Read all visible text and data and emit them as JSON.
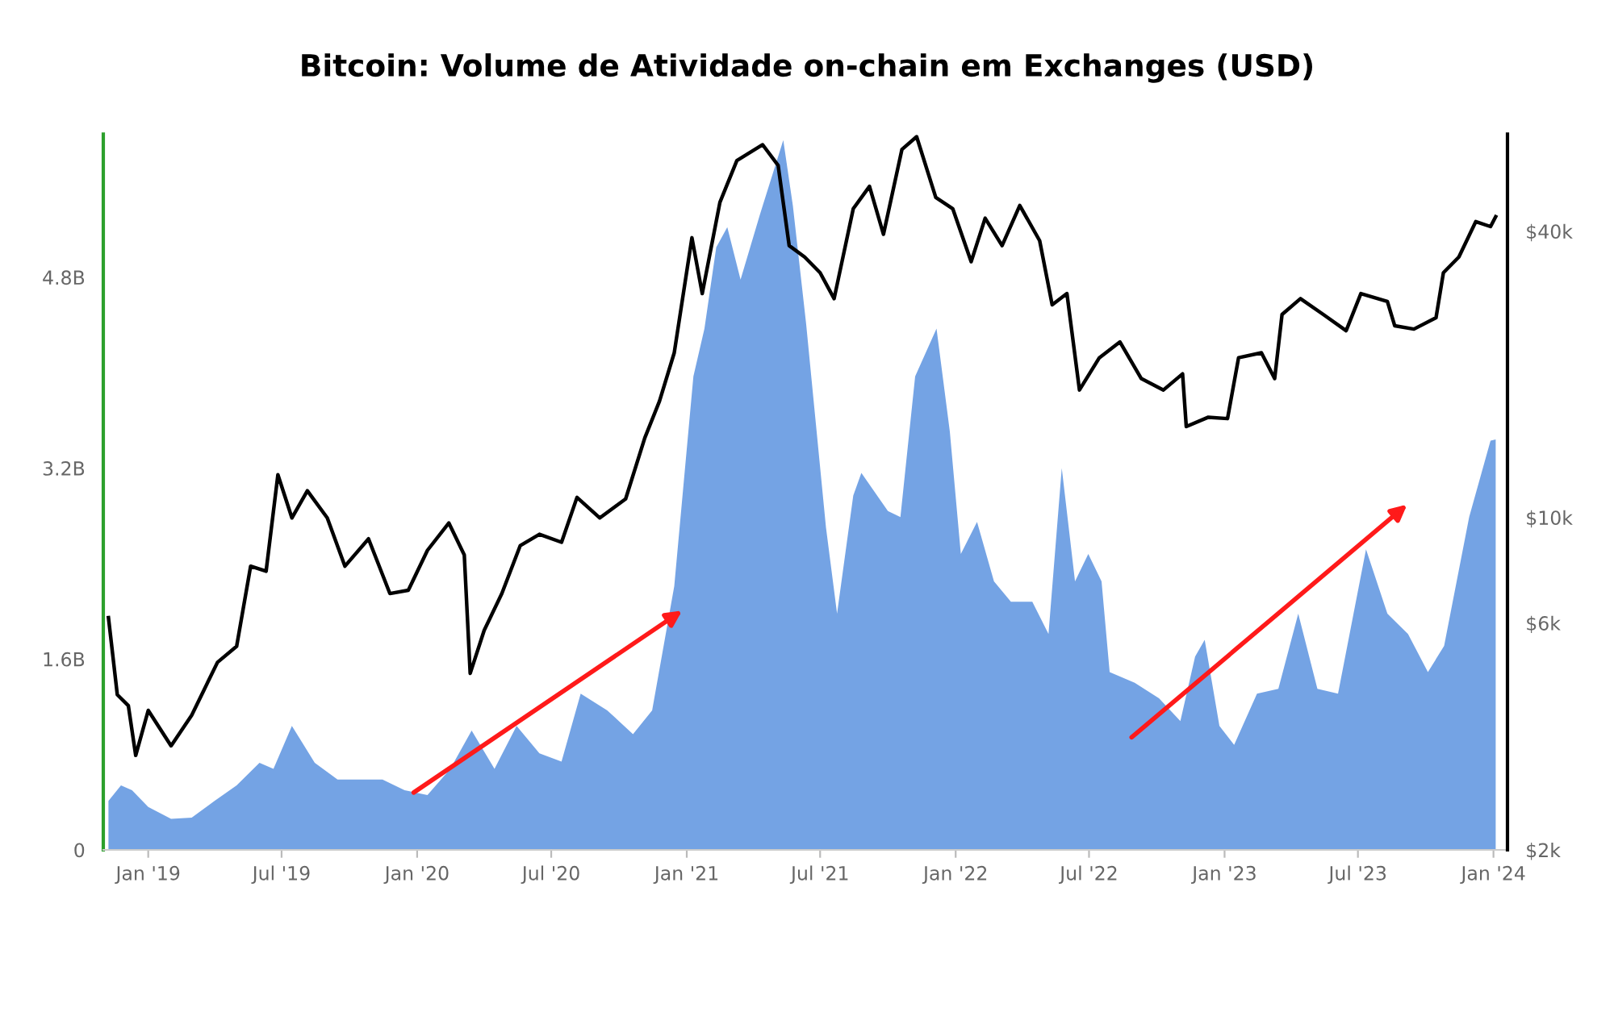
{
  "chart_data": {
    "type": "area",
    "title": "Bitcoin: Volume de Atividade on-chain em Exchanges (USD)",
    "xlim": [
      "2018-11-01",
      "2024-01-20"
    ],
    "xticks": [
      {
        "value": "2019-01-01",
        "label": "Jan '19"
      },
      {
        "value": "2019-07-01",
        "label": "Jul '19"
      },
      {
        "value": "2020-01-01",
        "label": "Jan '20"
      },
      {
        "value": "2020-07-01",
        "label": "Jul '20"
      },
      {
        "value": "2021-01-01",
        "label": "Jan '21"
      },
      {
        "value": "2021-07-01",
        "label": "Jul '21"
      },
      {
        "value": "2022-01-01",
        "label": "Jan '22"
      },
      {
        "value": "2022-07-01",
        "label": "Jul '22"
      },
      {
        "value": "2023-01-01",
        "label": "Jan '23"
      },
      {
        "value": "2023-07-01",
        "label": "Jul '23"
      },
      {
        "value": "2024-01-01",
        "label": "Jan '24"
      }
    ],
    "ylim": [
      0,
      6.0
    ],
    "yticks": [
      0,
      {
        "value": 1.6,
        "label": "1.6B"
      },
      {
        "value": 3.2,
        "label": "3.2B"
      },
      {
        "value": 4.8,
        "label": "4.8B"
      }
    ],
    "y2lim": [
      2000,
      64000
    ],
    "y2ticks": [
      {
        "value": 2000,
        "label": "$2k"
      },
      {
        "value": 6000,
        "label": "$6k"
      },
      {
        "value": 10000,
        "label": "$10k"
      },
      {
        "value": 40000,
        "label": "$40k"
      }
    ],
    "log": "y2",
    "series": [
      {
        "color": "#6d9ee3",
        "x": [
          "2018-11-08",
          "2018-11-25",
          "2018-12-10",
          "2019-01-01",
          "2019-02-01",
          "2019-03-01",
          "2019-04-01",
          "2019-05-01",
          "2019-06-01",
          "2019-06-20",
          "2019-07-15",
          "2019-08-15",
          "2019-09-15",
          "2019-10-15",
          "2019-11-15",
          "2019-12-15",
          "2020-01-15",
          "2020-02-15",
          "2020-03-15",
          "2020-04-15",
          "2020-05-15",
          "2020-06-15",
          "2020-07-15",
          "2020-08-10",
          "2020-09-15",
          "2020-10-20",
          "2020-11-15",
          "2020-12-15",
          "2021-01-10",
          "2021-01-25",
          "2021-02-10",
          "2021-02-25",
          "2021-03-15",
          "2021-04-10",
          "2021-05-12",
          "2021-05-25",
          "2021-06-12",
          "2021-07-09",
          "2021-07-24",
          "2021-08-15",
          "2021-08-26",
          "2021-10-01",
          "2021-10-18",
          "2021-11-07",
          "2021-12-06",
          "2021-12-24",
          "2022-01-08",
          "2022-01-30",
          "2022-02-22",
          "2022-03-17",
          "2022-04-15",
          "2022-05-07",
          "2022-05-25",
          "2022-06-12",
          "2022-06-30",
          "2022-07-18",
          "2022-07-29",
          "2022-09-01",
          "2022-10-04",
          "2022-11-02",
          "2022-11-22",
          "2022-12-05",
          "2022-12-25",
          "2023-01-14",
          "2023-02-14",
          "2023-03-15",
          "2023-04-11",
          "2023-05-07",
          "2023-06-04",
          "2023-07-12",
          "2023-08-10",
          "2023-09-07",
          "2023-10-04",
          "2023-10-26",
          "2023-11-29",
          "2023-12-28",
          "2024-01-04"
        ],
        "values": [
          0.41,
          0.54,
          0.5,
          0.36,
          0.26,
          0.27,
          0.41,
          0.54,
          0.73,
          0.68,
          1.04,
          0.73,
          0.59,
          0.59,
          0.59,
          0.5,
          0.46,
          0.68,
          1.0,
          0.68,
          1.04,
          0.81,
          0.74,
          1.31,
          1.17,
          0.97,
          1.17,
          2.21,
          3.97,
          4.37,
          5.05,
          5.22,
          4.78,
          5.32,
          5.95,
          5.4,
          4.41,
          2.7,
          1.98,
          2.97,
          3.16,
          2.84,
          2.79,
          3.97,
          4.37,
          3.51,
          2.48,
          2.75,
          2.25,
          2.08,
          2.08,
          1.81,
          3.2,
          2.25,
          2.48,
          2.25,
          1.49,
          1.4,
          1.27,
          1.08,
          1.62,
          1.76,
          1.04,
          0.88,
          1.31,
          1.35,
          1.98,
          1.35,
          1.31,
          2.52,
          1.98,
          1.81,
          1.49,
          1.71,
          2.79,
          3.43,
          3.44
        ]
      },
      {
        "type": "line",
        "axis": "y2",
        "color": "#000000",
        "x": [
          "2018-11-08",
          "2018-11-20",
          "2018-12-05",
          "2018-12-15",
          "2019-01-01",
          "2019-02-01",
          "2019-03-01",
          "2019-04-05",
          "2019-05-01",
          "2019-05-20",
          "2019-06-10",
          "2019-06-26",
          "2019-07-15",
          "2019-08-05",
          "2019-09-01",
          "2019-09-25",
          "2019-10-27",
          "2019-11-25",
          "2019-12-20",
          "2020-01-15",
          "2020-02-13",
          "2020-03-05",
          "2020-03-13",
          "2020-04-01",
          "2020-04-25",
          "2020-05-20",
          "2020-06-15",
          "2020-07-15",
          "2020-08-05",
          "2020-09-05",
          "2020-10-10",
          "2020-11-05",
          "2020-11-25",
          "2020-12-15",
          "2021-01-08",
          "2021-01-22",
          "2021-02-15",
          "2021-03-10",
          "2021-04-14",
          "2021-05-05",
          "2021-05-20",
          "2021-06-10",
          "2021-07-01",
          "2021-07-20",
          "2021-08-15",
          "2021-09-06",
          "2021-09-25",
          "2021-10-20",
          "2021-11-09",
          "2021-12-05",
          "2021-12-28",
          "2022-01-22",
          "2022-02-10",
          "2022-03-05",
          "2022-03-29",
          "2022-04-25",
          "2022-05-12",
          "2022-06-01",
          "2022-06-18",
          "2022-07-15",
          "2022-08-12",
          "2022-09-10",
          "2022-10-10",
          "2022-11-05",
          "2022-11-10",
          "2022-12-10",
          "2023-01-05",
          "2023-01-20",
          "2023-02-20",
          "2023-03-10",
          "2023-03-20",
          "2023-04-14",
          "2023-05-15",
          "2023-06-15",
          "2023-07-05",
          "2023-08-10",
          "2023-08-20",
          "2023-09-15",
          "2023-10-15",
          "2023-10-25",
          "2023-11-15",
          "2023-12-08",
          "2023-12-28",
          "2024-01-04"
        ],
        "values": [
          6160,
          4240,
          4020,
          3160,
          3930,
          3310,
          3840,
          4960,
          5360,
          7900,
          7710,
          12300,
          9980,
          11380,
          9980,
          7900,
          9020,
          6920,
          7030,
          8530,
          9740,
          8340,
          4700,
          5790,
          6920,
          8730,
          9220,
          8870,
          11020,
          9980,
          10940,
          14700,
          17570,
          22200,
          38750,
          29570,
          46000,
          56300,
          60800,
          55000,
          37300,
          35300,
          32700,
          28850,
          44600,
          49700,
          39400,
          59400,
          63200,
          47100,
          44600,
          34500,
          42600,
          37300,
          45300,
          38200,
          28000,
          29570,
          18540,
          21670,
          23400,
          19590,
          18540,
          20050,
          15530,
          16250,
          16140,
          21670,
          22200,
          19590,
          26720,
          28850,
          26720,
          24710,
          29570,
          28460,
          25300,
          24900,
          26300,
          32700,
          35300,
          41900,
          40900,
          42900
        ]
      }
    ]
  }
}
